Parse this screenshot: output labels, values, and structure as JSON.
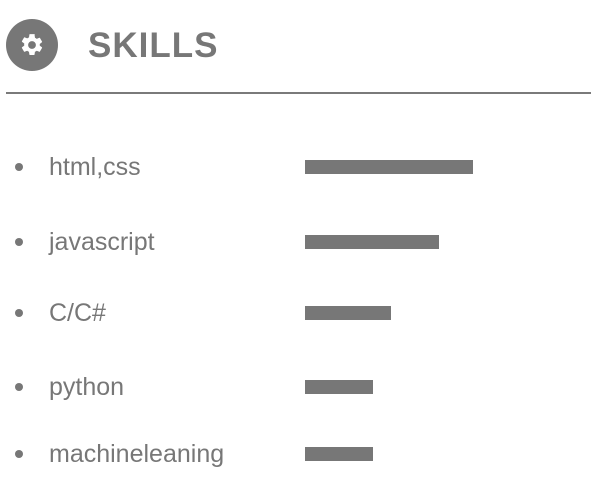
{
  "header": {
    "title": "SKILLS",
    "icon": "gear-icon",
    "color": "#777777"
  },
  "skills": [
    {
      "label": "html,css",
      "level": 0.84
    },
    {
      "label": "javascript",
      "level": 0.67
    },
    {
      "label": "C/C#",
      "level": 0.43
    },
    {
      "label": "python",
      "level": 0.34
    },
    {
      "label": "machineleaning",
      "level": 0.34
    }
  ]
}
